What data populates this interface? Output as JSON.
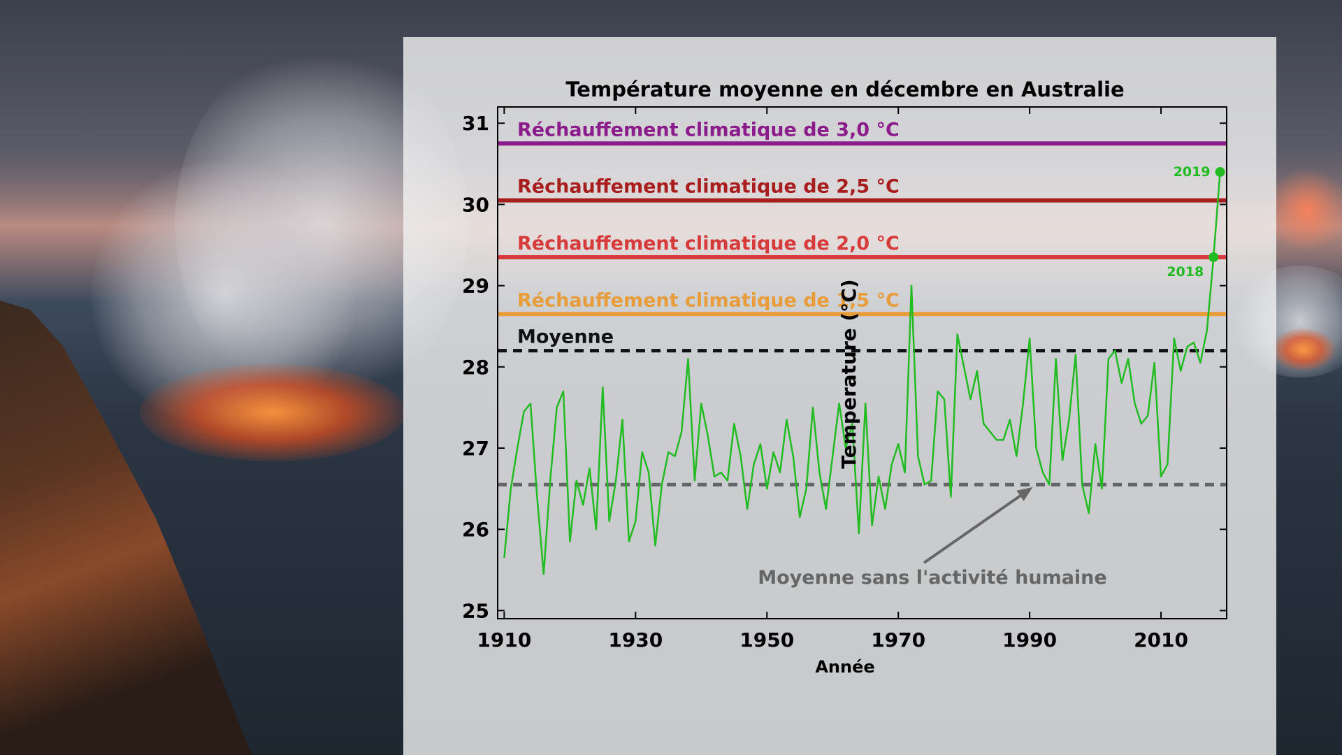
{
  "chart_data": {
    "type": "line",
    "title": "Température moyenne en décembre en Australie",
    "xlabel": "Année",
    "ylabel": "Temperature (°C)",
    "xlim": [
      1909,
      2020
    ],
    "ylim": [
      24.9,
      31.2
    ],
    "xticks": [
      1910,
      1930,
      1950,
      1970,
      1990,
      2010
    ],
    "yticks": [
      25,
      26,
      27,
      28,
      29,
      30,
      31
    ],
    "grid": false,
    "series": [
      {
        "color": "#22bb22",
        "x": [
          1910,
          1911,
          1912,
          1913,
          1914,
          1915,
          1916,
          1917,
          1918,
          1919,
          1920,
          1921,
          1922,
          1923,
          1924,
          1925,
          1926,
          1927,
          1928,
          1929,
          1930,
          1931,
          1932,
          1933,
          1934,
          1935,
          1936,
          1937,
          1938,
          1939,
          1940,
          1941,
          1942,
          1943,
          1944,
          1945,
          1946,
          1947,
          1948,
          1949,
          1950,
          1951,
          1952,
          1953,
          1954,
          1955,
          1956,
          1957,
          1958,
          1959,
          1960,
          1961,
          1962,
          1963,
          1964,
          1965,
          1966,
          1967,
          1968,
          1969,
          1970,
          1971,
          1972,
          1973,
          1974,
          1975,
          1976,
          1977,
          1978,
          1979,
          1980,
          1981,
          1982,
          1983,
          1984,
          1985,
          1986,
          1987,
          1988,
          1989,
          1990,
          1991,
          1992,
          1993,
          1994,
          1995,
          1996,
          1997,
          1998,
          1999,
          2000,
          2001,
          2002,
          2003,
          2004,
          2005,
          2006,
          2007,
          2008,
          2009,
          2010,
          2011,
          2012,
          2013,
          2014,
          2015,
          2016,
          2017,
          2018,
          2019
        ],
        "y": [
          25.65,
          26.5,
          27.0,
          27.45,
          27.55,
          26.4,
          25.45,
          26.6,
          27.5,
          27.7,
          25.85,
          26.6,
          26.3,
          26.75,
          26.0,
          27.75,
          26.1,
          26.6,
          27.35,
          25.85,
          26.1,
          26.95,
          26.7,
          25.8,
          26.55,
          26.95,
          26.9,
          27.2,
          28.1,
          26.6,
          27.55,
          27.15,
          26.65,
          26.7,
          26.6,
          27.3,
          26.9,
          26.25,
          26.8,
          27.05,
          26.5,
          26.95,
          26.7,
          27.35,
          26.9,
          26.15,
          26.5,
          27.5,
          26.7,
          26.25,
          26.9,
          27.55,
          27.0,
          27.3,
          25.95,
          27.55,
          26.05,
          26.65,
          26.25,
          26.8,
          27.05,
          26.7,
          29.0,
          26.9,
          26.55,
          26.6,
          27.7,
          27.6,
          26.4,
          28.4,
          28.0,
          27.6,
          27.95,
          27.3,
          27.2,
          27.1,
          27.1,
          27.35,
          26.9,
          27.55,
          28.35,
          27.0,
          26.7,
          26.55,
          28.1,
          26.85,
          27.35,
          28.15,
          26.55,
          26.2,
          27.05,
          26.5,
          28.1,
          28.2,
          27.8,
          28.1,
          27.55,
          27.3,
          27.4,
          28.05,
          26.65,
          26.8,
          28.35,
          27.95,
          28.25,
          28.3,
          28.05,
          28.45,
          29.35,
          30.4
        ]
      }
    ],
    "reference_lines": [
      {
        "label": "Réchauffement climatique de 3,0 °C",
        "y": 30.75,
        "color": "#8b1c8b",
        "style": "solid"
      },
      {
        "label": "Réchauffement climatique de 2,5 °C",
        "y": 30.05,
        "color": "#a81d1d",
        "style": "solid"
      },
      {
        "label": "Réchauffement climatique de 2,0 °C",
        "y": 29.35,
        "color": "#d63a3a",
        "style": "solid"
      },
      {
        "label": "Réchauffement climatique de 1,5 °C",
        "y": 28.65,
        "color": "#e89c3a",
        "style": "solid"
      },
      {
        "label": "Moyenne",
        "y": 28.2,
        "color": "#111111",
        "style": "dashed"
      },
      {
        "label": "",
        "y": 26.55,
        "color": "#666666",
        "style": "dashed"
      }
    ],
    "annotations": [
      {
        "text": "2018",
        "x": 2018,
        "y": 29.35,
        "color": "#22bb22"
      },
      {
        "text": "2019",
        "x": 2019,
        "y": 30.4,
        "color": "#22bb22"
      },
      {
        "text": "Moyenne sans l'activité humaine",
        "target_x": 1991,
        "target_y": 26.55,
        "color": "#666666"
      }
    ]
  }
}
